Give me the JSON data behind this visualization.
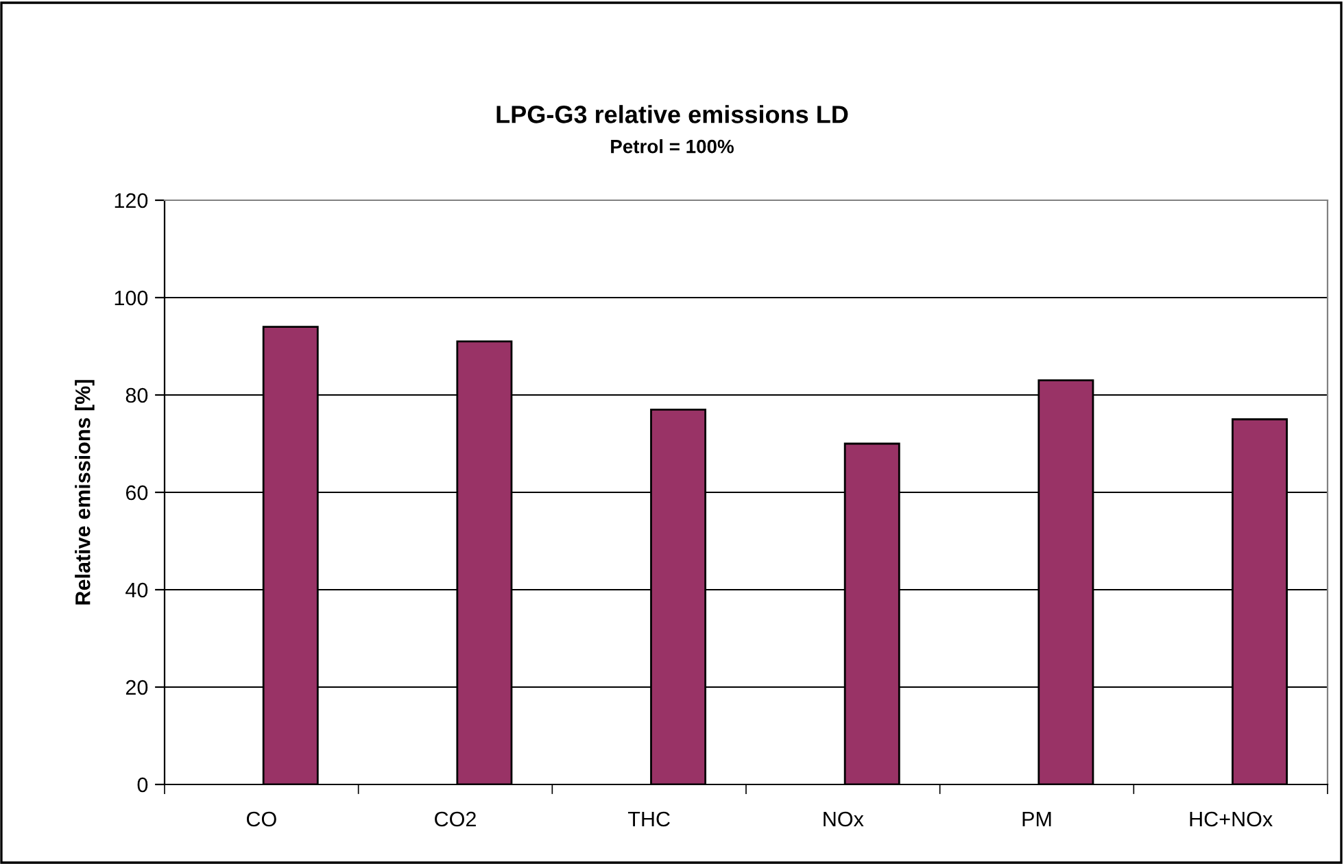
{
  "chart_data": {
    "type": "bar",
    "title": "LPG-G3 relative emissions LD",
    "subtitle": "Petrol = 100%",
    "ylabel": "Relative emissions [%]",
    "categories": [
      "CO",
      "CO2",
      "THC",
      "NOx",
      "PM",
      "HC+NOx"
    ],
    "values": [
      94,
      91,
      77,
      70,
      83,
      75
    ],
    "color": "#993366",
    "ylim": [
      0,
      120
    ],
    "yticks": [
      0,
      20,
      40,
      60,
      80,
      100,
      120
    ],
    "grid": "y"
  }
}
